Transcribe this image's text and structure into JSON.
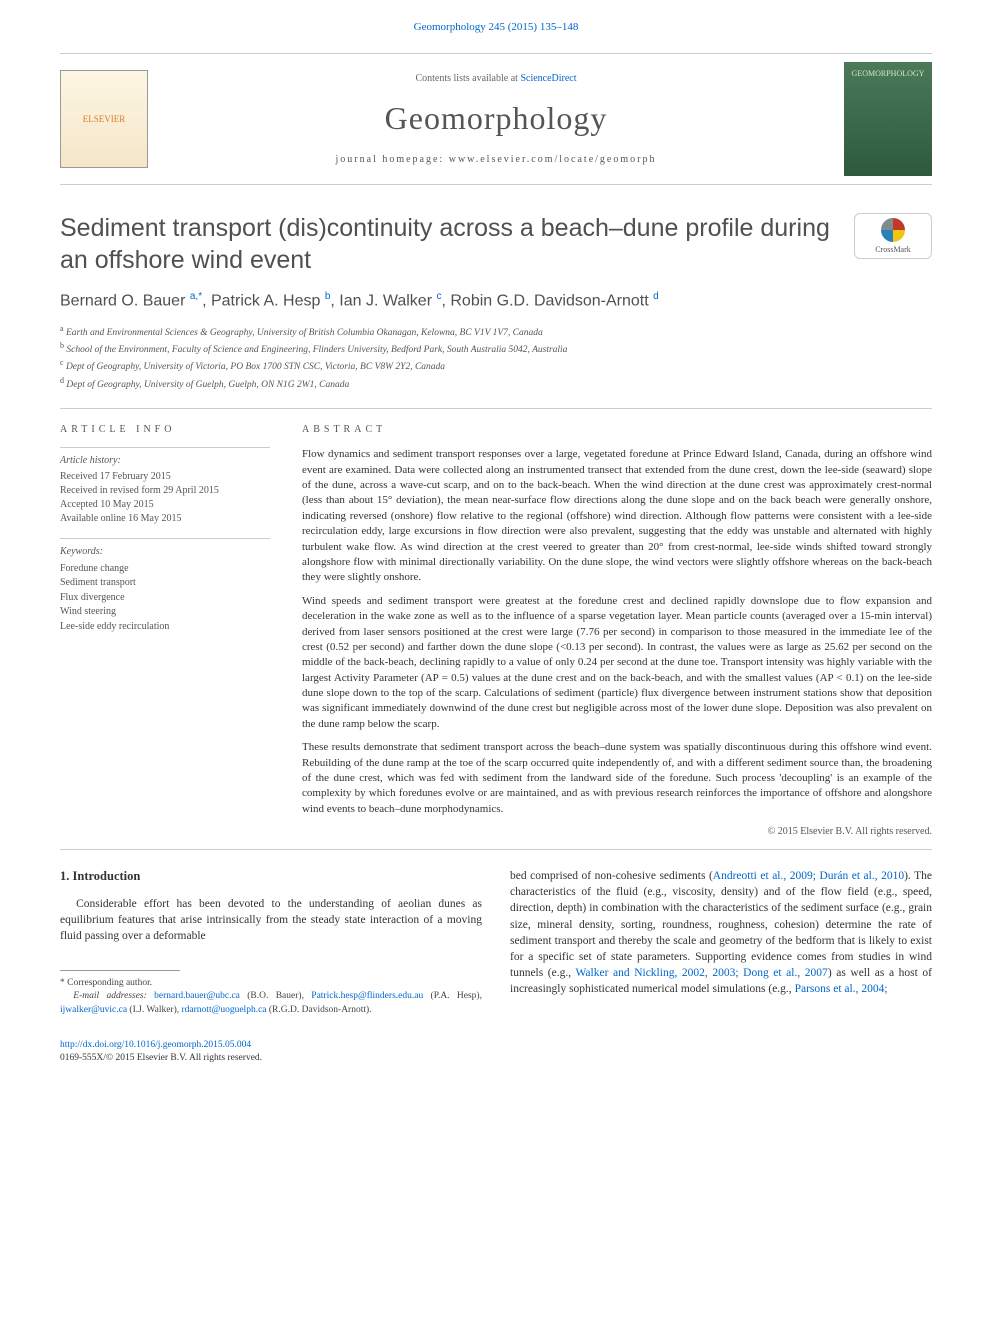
{
  "top_reference": {
    "text": "Geomorphology 245 (2015) 135–148",
    "link_color": "#0066cc"
  },
  "header": {
    "contents_prefix": "Contents lists available at ",
    "contents_link": "ScienceDirect",
    "journal_name": "Geomorphology",
    "homepage_prefix": "journal homepage: ",
    "homepage_url": "www.elsevier.com/locate/geomorph",
    "publisher_logo_label": "ELSEVIER",
    "cover_label": "GEOMORPHOLOGY"
  },
  "article": {
    "title": "Sediment transport (dis)continuity across a beach–dune profile during an offshore wind event",
    "crossmark_label": "CrossMark"
  },
  "authors_html_parts": {
    "a1_name": "Bernard O. Bauer ",
    "a1_sup": "a,",
    "a1_star": "*",
    "sep": ", ",
    "a2_name": "Patrick A. Hesp ",
    "a2_sup": "b",
    "a3_name": "Ian J. Walker ",
    "a3_sup": "c",
    "a4_name": "Robin G.D. Davidson-Arnott ",
    "a4_sup": "d"
  },
  "affiliations": [
    {
      "sup": "a",
      "text": " Earth and Environmental Sciences & Geography, University of British Columbia Okanagan, Kelowna, BC V1V 1V7, Canada"
    },
    {
      "sup": "b",
      "text": " School of the Environment, Faculty of Science and Engineering, Flinders University, Bedford Park, South Australia 5042, Australia"
    },
    {
      "sup": "c",
      "text": " Dept of Geography, University of Victoria, PO Box 1700 STN CSC, Victoria, BC V8W 2Y2, Canada"
    },
    {
      "sup": "d",
      "text": " Dept of Geography, University of Guelph, Guelph, ON N1G 2W1, Canada"
    }
  ],
  "info": {
    "heading": "article info",
    "history_label": "Article history:",
    "history": [
      "Received 17 February 2015",
      "Received in revised form 29 April 2015",
      "Accepted 10 May 2015",
      "Available online 16 May 2015"
    ],
    "keywords_label": "Keywords:",
    "keywords": [
      "Foredune change",
      "Sediment transport",
      "Flux divergence",
      "Wind steering",
      "Lee-side eddy recirculation"
    ]
  },
  "abstract": {
    "heading": "abstract",
    "paragraphs": [
      "Flow dynamics and sediment transport responses over a large, vegetated foredune at Prince Edward Island, Canada, during an offshore wind event are examined. Data were collected along an instrumented transect that extended from the dune crest, down the lee-side (seaward) slope of the dune, across a wave-cut scarp, and on to the back-beach. When the wind direction at the dune crest was approximately crest-normal (less than about 15° deviation), the mean near-surface flow directions along the dune slope and on the back beach were generally onshore, indicating reversed (onshore) flow relative to the regional (offshore) wind direction. Although flow patterns were consistent with a lee-side recirculation eddy, large excursions in flow direction were also prevalent, suggesting that the eddy was unstable and alternated with highly turbulent wake flow. As wind direction at the crest veered to greater than 20° from crest-normal, lee-side winds shifted toward strongly alongshore flow with minimal directionally variability. On the dune slope, the wind vectors were slightly offshore whereas on the back-beach they were slightly onshore.",
      "Wind speeds and sediment transport were greatest at the foredune crest and declined rapidly downslope due to flow expansion and deceleration in the wake zone as well as to the influence of a sparse vegetation layer. Mean particle counts (averaged over a 15-min interval) derived from laser sensors positioned at the crest were large (7.76 per second) in comparison to those measured in the immediate lee of the crest (0.52 per second) and farther down the dune slope (<0.13 per second). In contrast, the values were as large as 25.62 per second on the middle of the back-beach, declining rapidly to a value of only 0.24 per second at the dune toe. Transport intensity was highly variable with the largest Activity Parameter (AP = 0.5) values at the dune crest and on the back-beach, and with the smallest values (AP < 0.1) on the lee-side dune slope down to the top of the scarp. Calculations of sediment (particle) flux divergence between instrument stations show that deposition was significant immediately downwind of the dune crest but negligible across most of the lower dune slope. Deposition was also prevalent on the dune ramp below the scarp.",
      "These results demonstrate that sediment transport across the beach–dune system was spatially discontinuous during this offshore wind event. Rebuilding of the dune ramp at the toe of the scarp occurred quite independently of, and with a different sediment source than, the broadening of the dune crest, which was fed with sediment from the landward side of the foredune. Such process 'decoupling' is an example of the complexity by which foredunes evolve or are maintained, and as with previous research reinforces the importance of offshore and alongshore wind events to beach–dune morphodynamics."
    ],
    "copyright": "© 2015 Elsevier B.V. All rights reserved."
  },
  "body": {
    "section_heading": "1. Introduction",
    "para1_pre": "Considerable effort has been devoted to the understanding of aeolian dunes as equilibrium features that arise intrinsically from the steady state interaction of a moving fluid passing over a deformable",
    "para1_post_pre": "bed comprised of non-cohesive sediments (",
    "para1_cite1": "Andreotti et al., 2009; Durán et al., 2010",
    "para1_mid1": "). The characteristics of the fluid (e.g., viscosity, density) and of the flow field (e.g., speed, direction, depth) in combination with the characteristics of the sediment surface (e.g., grain size, mineral density, sorting, roundness, roughness, cohesion) determine the rate of sediment transport and thereby the scale and geometry of the bedform that is likely to exist for a specific set of state parameters. Supporting evidence comes from studies in wind tunnels (e.g., ",
    "para1_cite2": "Walker and Nickling, 2002, 2003; Dong et al., 2007",
    "para1_mid2": ") as well as a host of increasingly sophisticated numerical model simulations (e.g., ",
    "para1_cite3": "Parsons et al., 2004;"
  },
  "footnotes": {
    "corr_label": "Corresponding author.",
    "email_label": "E-mail addresses: ",
    "emails": [
      {
        "addr": "bernard.bauer@ubc.ca",
        "who": " (B.O. Bauer), "
      },
      {
        "addr": "Patrick.hesp@flinders.edu.au",
        "who": " (P.A. Hesp), "
      },
      {
        "addr": "ijwalker@uvic.ca",
        "who": " (I.J. Walker), "
      },
      {
        "addr": "rdarnott@uoguelph.ca",
        "who": " (R.G.D. Davidson-Arnott)."
      }
    ]
  },
  "bottom": {
    "doi": "http://dx.doi.org/10.1016/j.geomorph.2015.05.004",
    "issn_line": "0169-555X/© 2015 Elsevier B.V. All rights reserved."
  },
  "colors": {
    "link": "#0066cc",
    "text": "#333333",
    "muted": "#555555",
    "rule": "#cccccc"
  }
}
